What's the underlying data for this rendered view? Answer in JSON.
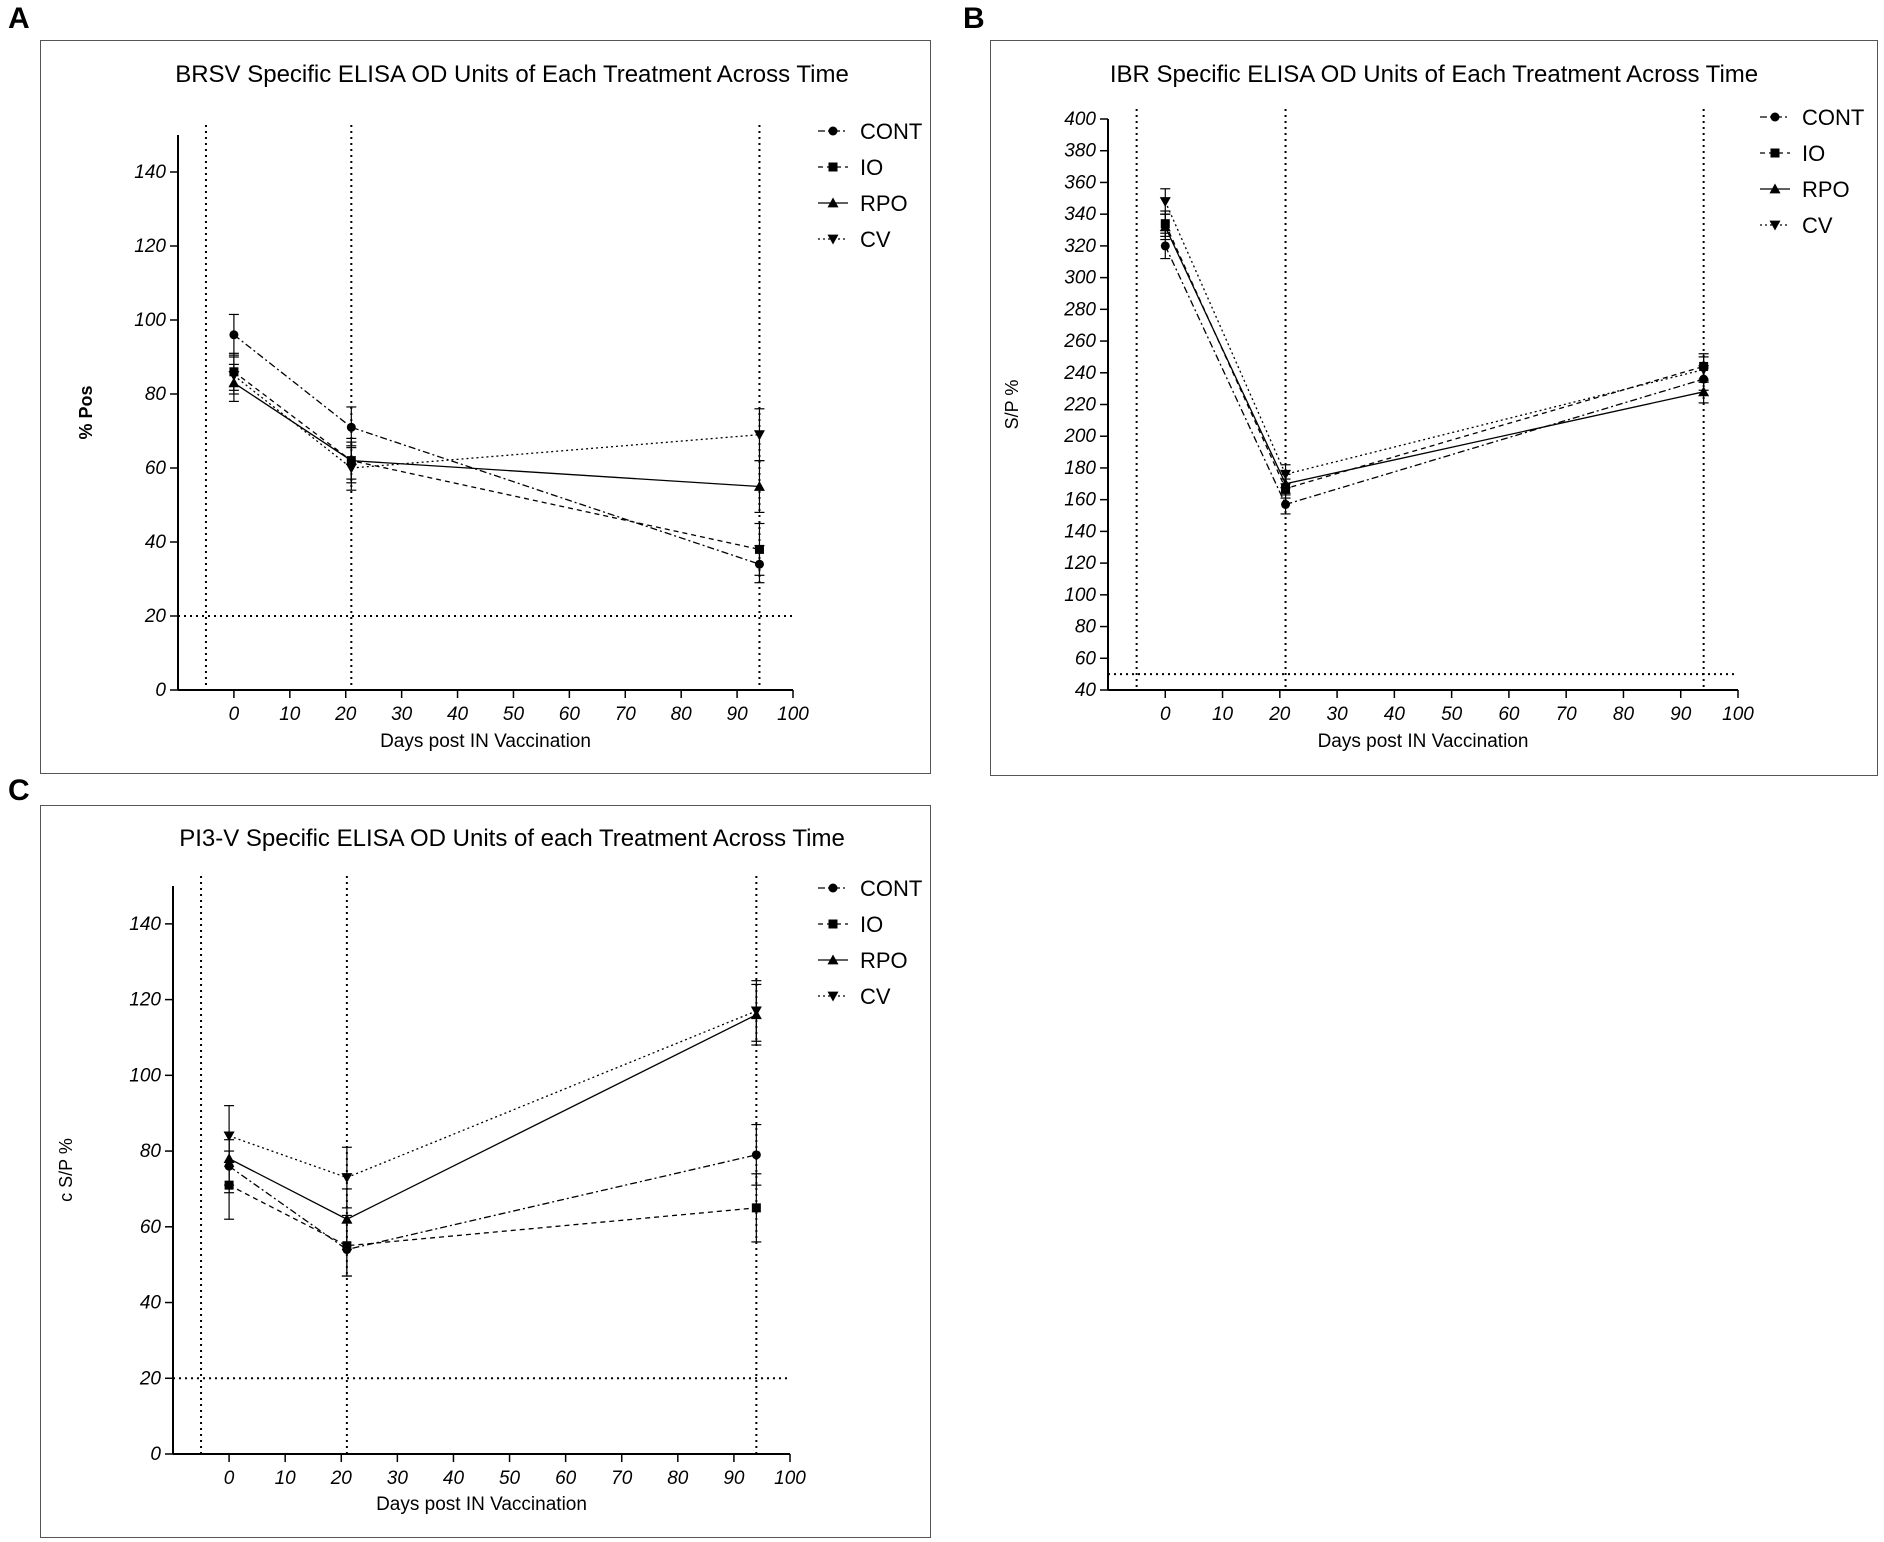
{
  "panels": {
    "A": {
      "letter": "A"
    },
    "B": {
      "letter": "B"
    },
    "C": {
      "letter": "C"
    }
  },
  "chart_data": [
    {
      "id": "A",
      "type": "line",
      "title": "BRSV Specific ELISA OD Units of Each Treatment Across Time",
      "xlabel": "Days post IN Vaccination",
      "ylabel": "% Pos",
      "xlim": [
        -10,
        100
      ],
      "ylim": [
        0,
        150
      ],
      "xticks": [
        0,
        10,
        20,
        30,
        40,
        50,
        60,
        70,
        80,
        90,
        100
      ],
      "yticks": [
        0,
        20,
        40,
        60,
        80,
        100,
        120,
        140
      ],
      "vlines": [
        -5,
        21,
        94
      ],
      "hline": 20,
      "legend_position": "top-right",
      "x": [
        0,
        21,
        94
      ],
      "series": [
        {
          "name": "CONT",
          "marker": "circle",
          "style": "dashdot",
          "values": [
            96,
            71,
            34
          ],
          "errors": [
            5.5,
            5.5,
            5
          ]
        },
        {
          "name": "IO",
          "marker": "square",
          "style": "dashed",
          "values": [
            86,
            62,
            38
          ],
          "errors": [
            5,
            5,
            7
          ]
        },
        {
          "name": "RPO",
          "marker": "triangle-up",
          "style": "solid",
          "values": [
            83,
            62,
            55
          ],
          "errors": [
            5,
            6,
            7
          ]
        },
        {
          "name": "CV",
          "marker": "triangle-down",
          "style": "dotted",
          "values": [
            85,
            60,
            69
          ],
          "errors": [
            5,
            6,
            7
          ]
        }
      ]
    },
    {
      "id": "B",
      "type": "line",
      "title": "IBR Specific ELISA OD Units of Each Treatment Across Time",
      "xlabel": "Days post IN Vaccination",
      "ylabel": "S/P %",
      "xlim": [
        -10,
        100
      ],
      "ylim": [
        40,
        400
      ],
      "xticks": [
        0,
        10,
        20,
        30,
        40,
        50,
        60,
        70,
        80,
        90,
        100
      ],
      "yticks": [
        40,
        60,
        80,
        100,
        120,
        140,
        160,
        180,
        200,
        220,
        240,
        260,
        280,
        300,
        320,
        340,
        360,
        380,
        400
      ],
      "vlines": [
        -5,
        21,
        94
      ],
      "hline": 50,
      "legend_position": "top-right",
      "x": [
        0,
        21,
        94
      ],
      "series": [
        {
          "name": "CONT",
          "marker": "circle",
          "style": "dashdot",
          "values": [
            320,
            157,
            236
          ],
          "errors": [
            8,
            6,
            7
          ]
        },
        {
          "name": "IO",
          "marker": "square",
          "style": "dashed",
          "values": [
            334,
            167,
            244
          ],
          "errors": [
            8,
            6,
            8
          ]
        },
        {
          "name": "RPO",
          "marker": "triangle-up",
          "style": "solid",
          "values": [
            332,
            170,
            228
          ],
          "errors": [
            8,
            6,
            7
          ]
        },
        {
          "name": "CV",
          "marker": "triangle-down",
          "style": "dotted",
          "values": [
            348,
            176,
            242
          ],
          "errors": [
            8,
            6,
            8
          ]
        }
      ]
    },
    {
      "id": "C",
      "type": "line",
      "title": "PI3-V Specific ELISA OD Units of each Treatment Across Time",
      "xlabel": "Days post IN Vaccination",
      "ylabel": "c S/P %",
      "xlim": [
        -10,
        100
      ],
      "ylim": [
        0,
        150
      ],
      "xticks": [
        0,
        10,
        20,
        30,
        40,
        50,
        60,
        70,
        80,
        90,
        100
      ],
      "yticks": [
        0,
        20,
        40,
        60,
        80,
        100,
        120,
        140
      ],
      "vlines": [
        -5,
        21,
        94
      ],
      "hline": 20,
      "legend_position": "top-right",
      "x": [
        0,
        21,
        94
      ],
      "series": [
        {
          "name": "CONT",
          "marker": "circle",
          "style": "dashdot",
          "values": [
            76,
            54,
            79
          ],
          "errors": [
            7,
            7,
            8
          ]
        },
        {
          "name": "IO",
          "marker": "square",
          "style": "dashed",
          "values": [
            71,
            55,
            65
          ],
          "errors": [
            9,
            8,
            9
          ]
        },
        {
          "name": "RPO",
          "marker": "triangle-up",
          "style": "solid",
          "values": [
            78,
            62,
            116
          ],
          "errors": [
            7,
            8,
            8
          ]
        },
        {
          "name": "CV",
          "marker": "triangle-down",
          "style": "dotted",
          "values": [
            84,
            73,
            117
          ],
          "errors": [
            8,
            8,
            8
          ]
        }
      ]
    }
  ]
}
